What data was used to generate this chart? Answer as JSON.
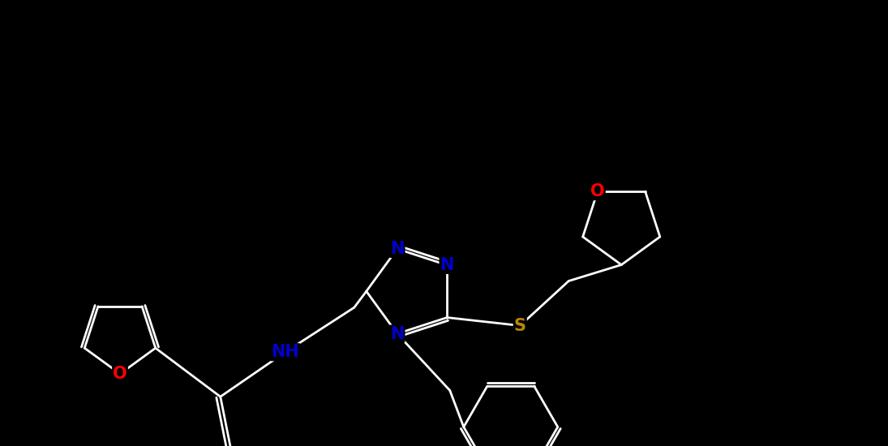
{
  "background_color": "#000000",
  "bond_color": "#ffffff",
  "atom_colors": {
    "O": "#ff0000",
    "N": "#0000cd",
    "S": "#b8860b",
    "C": "#ffffff",
    "H": "#ffffff"
  },
  "figsize": [
    10.95,
    5.5
  ],
  "dpi": 100,
  "line_width": 2.0,
  "font_size": 15
}
